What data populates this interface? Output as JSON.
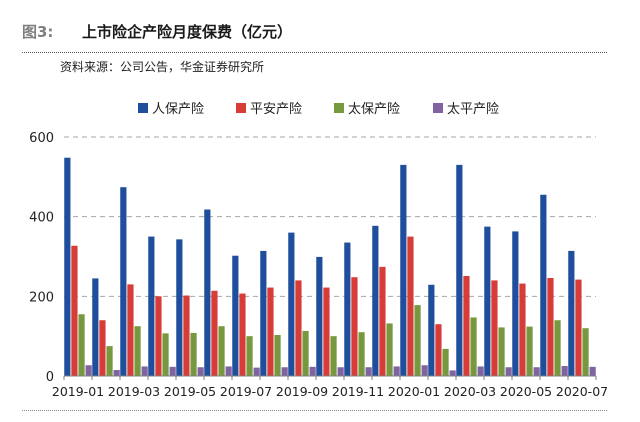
{
  "header": {
    "fig_label": "图3:",
    "title": "上市险企产险月度保费（亿元）"
  },
  "source": "资料来源：公司公告，华金证券研究所",
  "chart_data": {
    "type": "bar",
    "title": "上市险企产险月度保费（亿元）",
    "ylim": [
      0,
      600
    ],
    "yticks": [
      0,
      200,
      400,
      600
    ],
    "grid": true,
    "legend_position": "top",
    "categories": [
      "2019-01",
      "2019-02",
      "2019-03",
      "2019-04",
      "2019-05",
      "2019-06",
      "2019-07",
      "2019-08",
      "2019-09",
      "2019-10",
      "2019-11",
      "2019-12",
      "2020-01",
      "2020-02",
      "2020-03",
      "2020-04",
      "2020-05",
      "2020-06",
      "2020-07"
    ],
    "xtick_labels": [
      "2019-01",
      "2019-03",
      "2019-05",
      "2019-07",
      "2019-09",
      "2019-11",
      "2020-01",
      "2020-03",
      "2020-05",
      "2020-07"
    ],
    "series": [
      {
        "name": "人保产险",
        "color": "#1f4e9c",
        "values": [
          548,
          245,
          474,
          350,
          343,
          418,
          302,
          314,
          360,
          299,
          335,
          377,
          530,
          229,
          530,
          375,
          363,
          455,
          314
        ]
      },
      {
        "name": "平安产险",
        "color": "#d73c36",
        "values": [
          327,
          140,
          230,
          200,
          202,
          214,
          207,
          222,
          240,
          222,
          248,
          274,
          350,
          130,
          251,
          240,
          232,
          246,
          242
        ]
      },
      {
        "name": "太保产险",
        "color": "#76993f",
        "values": [
          155,
          75,
          125,
          107,
          108,
          125,
          100,
          103,
          113,
          100,
          110,
          132,
          178,
          68,
          147,
          122,
          124,
          140,
          120
        ]
      },
      {
        "name": "太平产险",
        "color": "#8064a2",
        "values": [
          27,
          15,
          24,
          23,
          22,
          24,
          21,
          22,
          23,
          22,
          22,
          24,
          27,
          14,
          24,
          22,
          22,
          25,
          23
        ]
      }
    ]
  }
}
